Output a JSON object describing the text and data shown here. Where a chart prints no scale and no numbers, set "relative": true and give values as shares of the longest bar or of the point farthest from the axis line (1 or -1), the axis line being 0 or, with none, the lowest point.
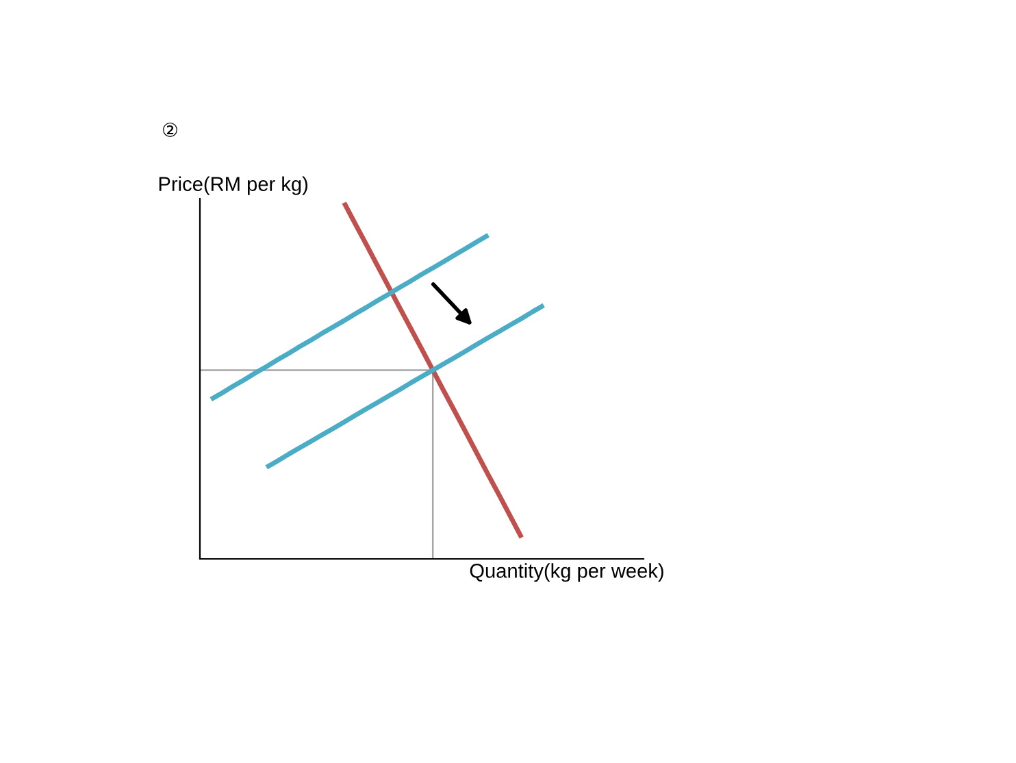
{
  "chart_data": {
    "type": "line",
    "relative": true,
    "xlabel": "Quantity(kg per week)",
    "ylabel": "Price(RM per kg)",
    "annotations": [
      "②"
    ],
    "legend": false,
    "marker": "none",
    "line_style": "solid",
    "categories": [
      null,
      null,
      null,
      null,
      null,
      null,
      null,
      null,
      null,
      null,
      null,
      null,
      null,
      null,
      null,
      null,
      null,
      null,
      null,
      null,
      null,
      null,
      null,
      null,
      null,
      null,
      null,
      null,
      null,
      null,
      null,
      null,
      null,
      null,
      null,
      null,
      null,
      null,
      null,
      null,
      null
    ],
    "series": [
      {
        "color": "#c0504d",
        "values": [
          null,
          null,
          null,
          null,
          null,
          null,
          null,
          null,
          null,
          null,
          null,
          null,
          null,
          1.0,
          0.941,
          0.883,
          0.824,
          0.765,
          0.706,
          0.648,
          0.589,
          0.53,
          0.471,
          0.413,
          0.354,
          0.295,
          0.236,
          0.178,
          0.119,
          0.06,
          null,
          null,
          null,
          null,
          null,
          null,
          null,
          null,
          null,
          null,
          null
        ]
      },
      {
        "color": "#4bacc6",
        "values": [
          null,
          0.448,
          0.466,
          0.485,
          0.503,
          0.522,
          0.54,
          0.559,
          0.577,
          0.596,
          0.614,
          0.633,
          0.651,
          0.669,
          0.688,
          0.706,
          0.725,
          0.743,
          0.762,
          0.78,
          0.799,
          0.817,
          0.835,
          0.854,
          0.872,
          0.891,
          0.909,
          null,
          null,
          null,
          null,
          null,
          null,
          null,
          null,
          null,
          null,
          null,
          null,
          null,
          null
        ]
      },
      {
        "color": "#4bacc6",
        "values": [
          null,
          null,
          null,
          null,
          null,
          null,
          0.257,
          0.275,
          0.294,
          0.312,
          0.33,
          0.348,
          0.366,
          0.384,
          0.403,
          0.421,
          0.439,
          0.457,
          0.475,
          0.494,
          0.512,
          0.53,
          0.548,
          0.566,
          0.584,
          0.603,
          0.621,
          0.639,
          0.657,
          0.675,
          0.694,
          0.712,
          null,
          null,
          null,
          null,
          null,
          null,
          null,
          null,
          null
        ]
      }
    ],
    "ref_lines": [
      {
        "axis": "y",
        "value": 0.53,
        "color": "#a6a6a6"
      }
    ]
  }
}
